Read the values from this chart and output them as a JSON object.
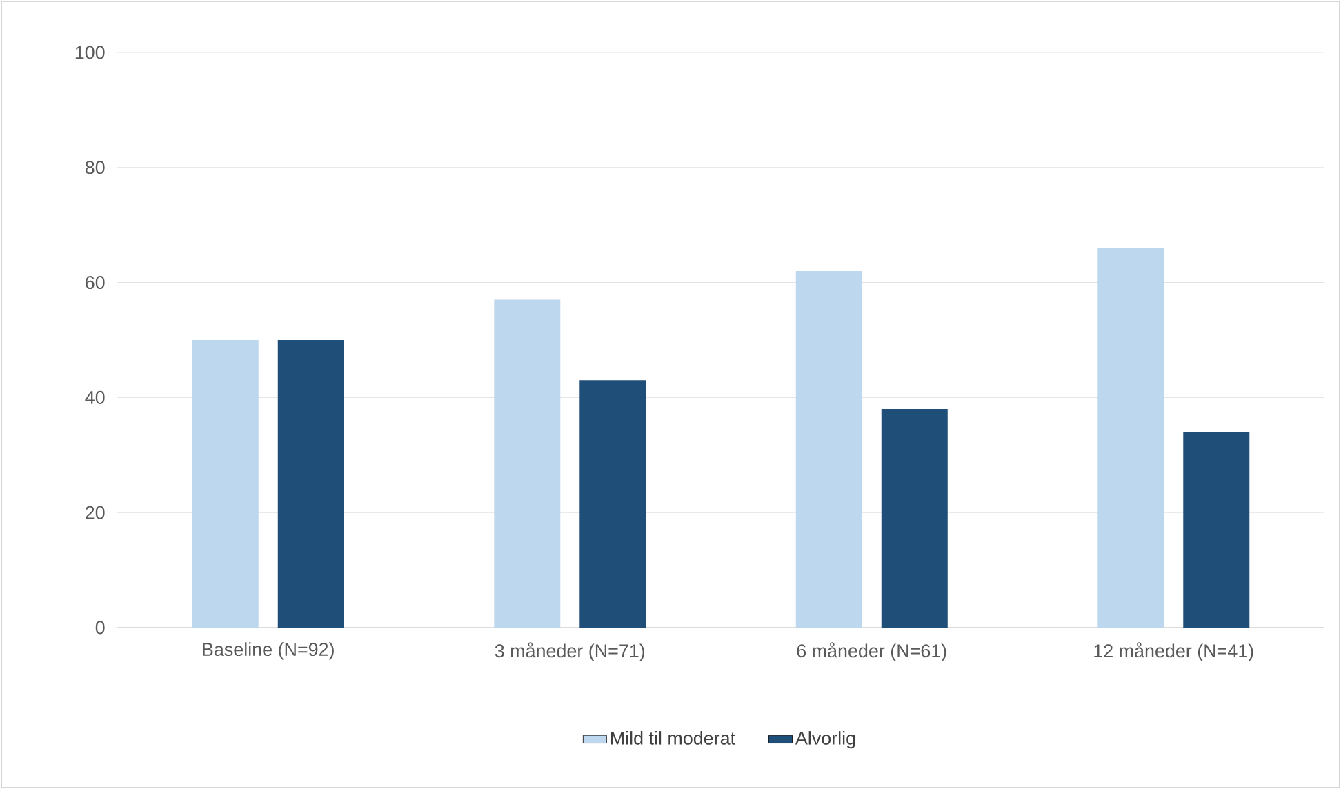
{
  "chart_data": {
    "type": "bar",
    "categories": [
      "Baseline (N=92)",
      "3 måneder (N=71)",
      "6 måneder (N=61)",
      "12 måneder (N=41)"
    ],
    "series": [
      {
        "name": "Mild til moderat",
        "color": "#bdd7ee",
        "values": [
          50,
          57,
          62,
          66
        ]
      },
      {
        "name": "Alvorlig",
        "color": "#1f4e79",
        "values": [
          50,
          43,
          38,
          34
        ]
      }
    ],
    "ylim": [
      0,
      100
    ],
    "yticks": [
      0,
      20,
      40,
      60,
      80,
      100
    ],
    "grid": "y",
    "legend": "bottom"
  }
}
